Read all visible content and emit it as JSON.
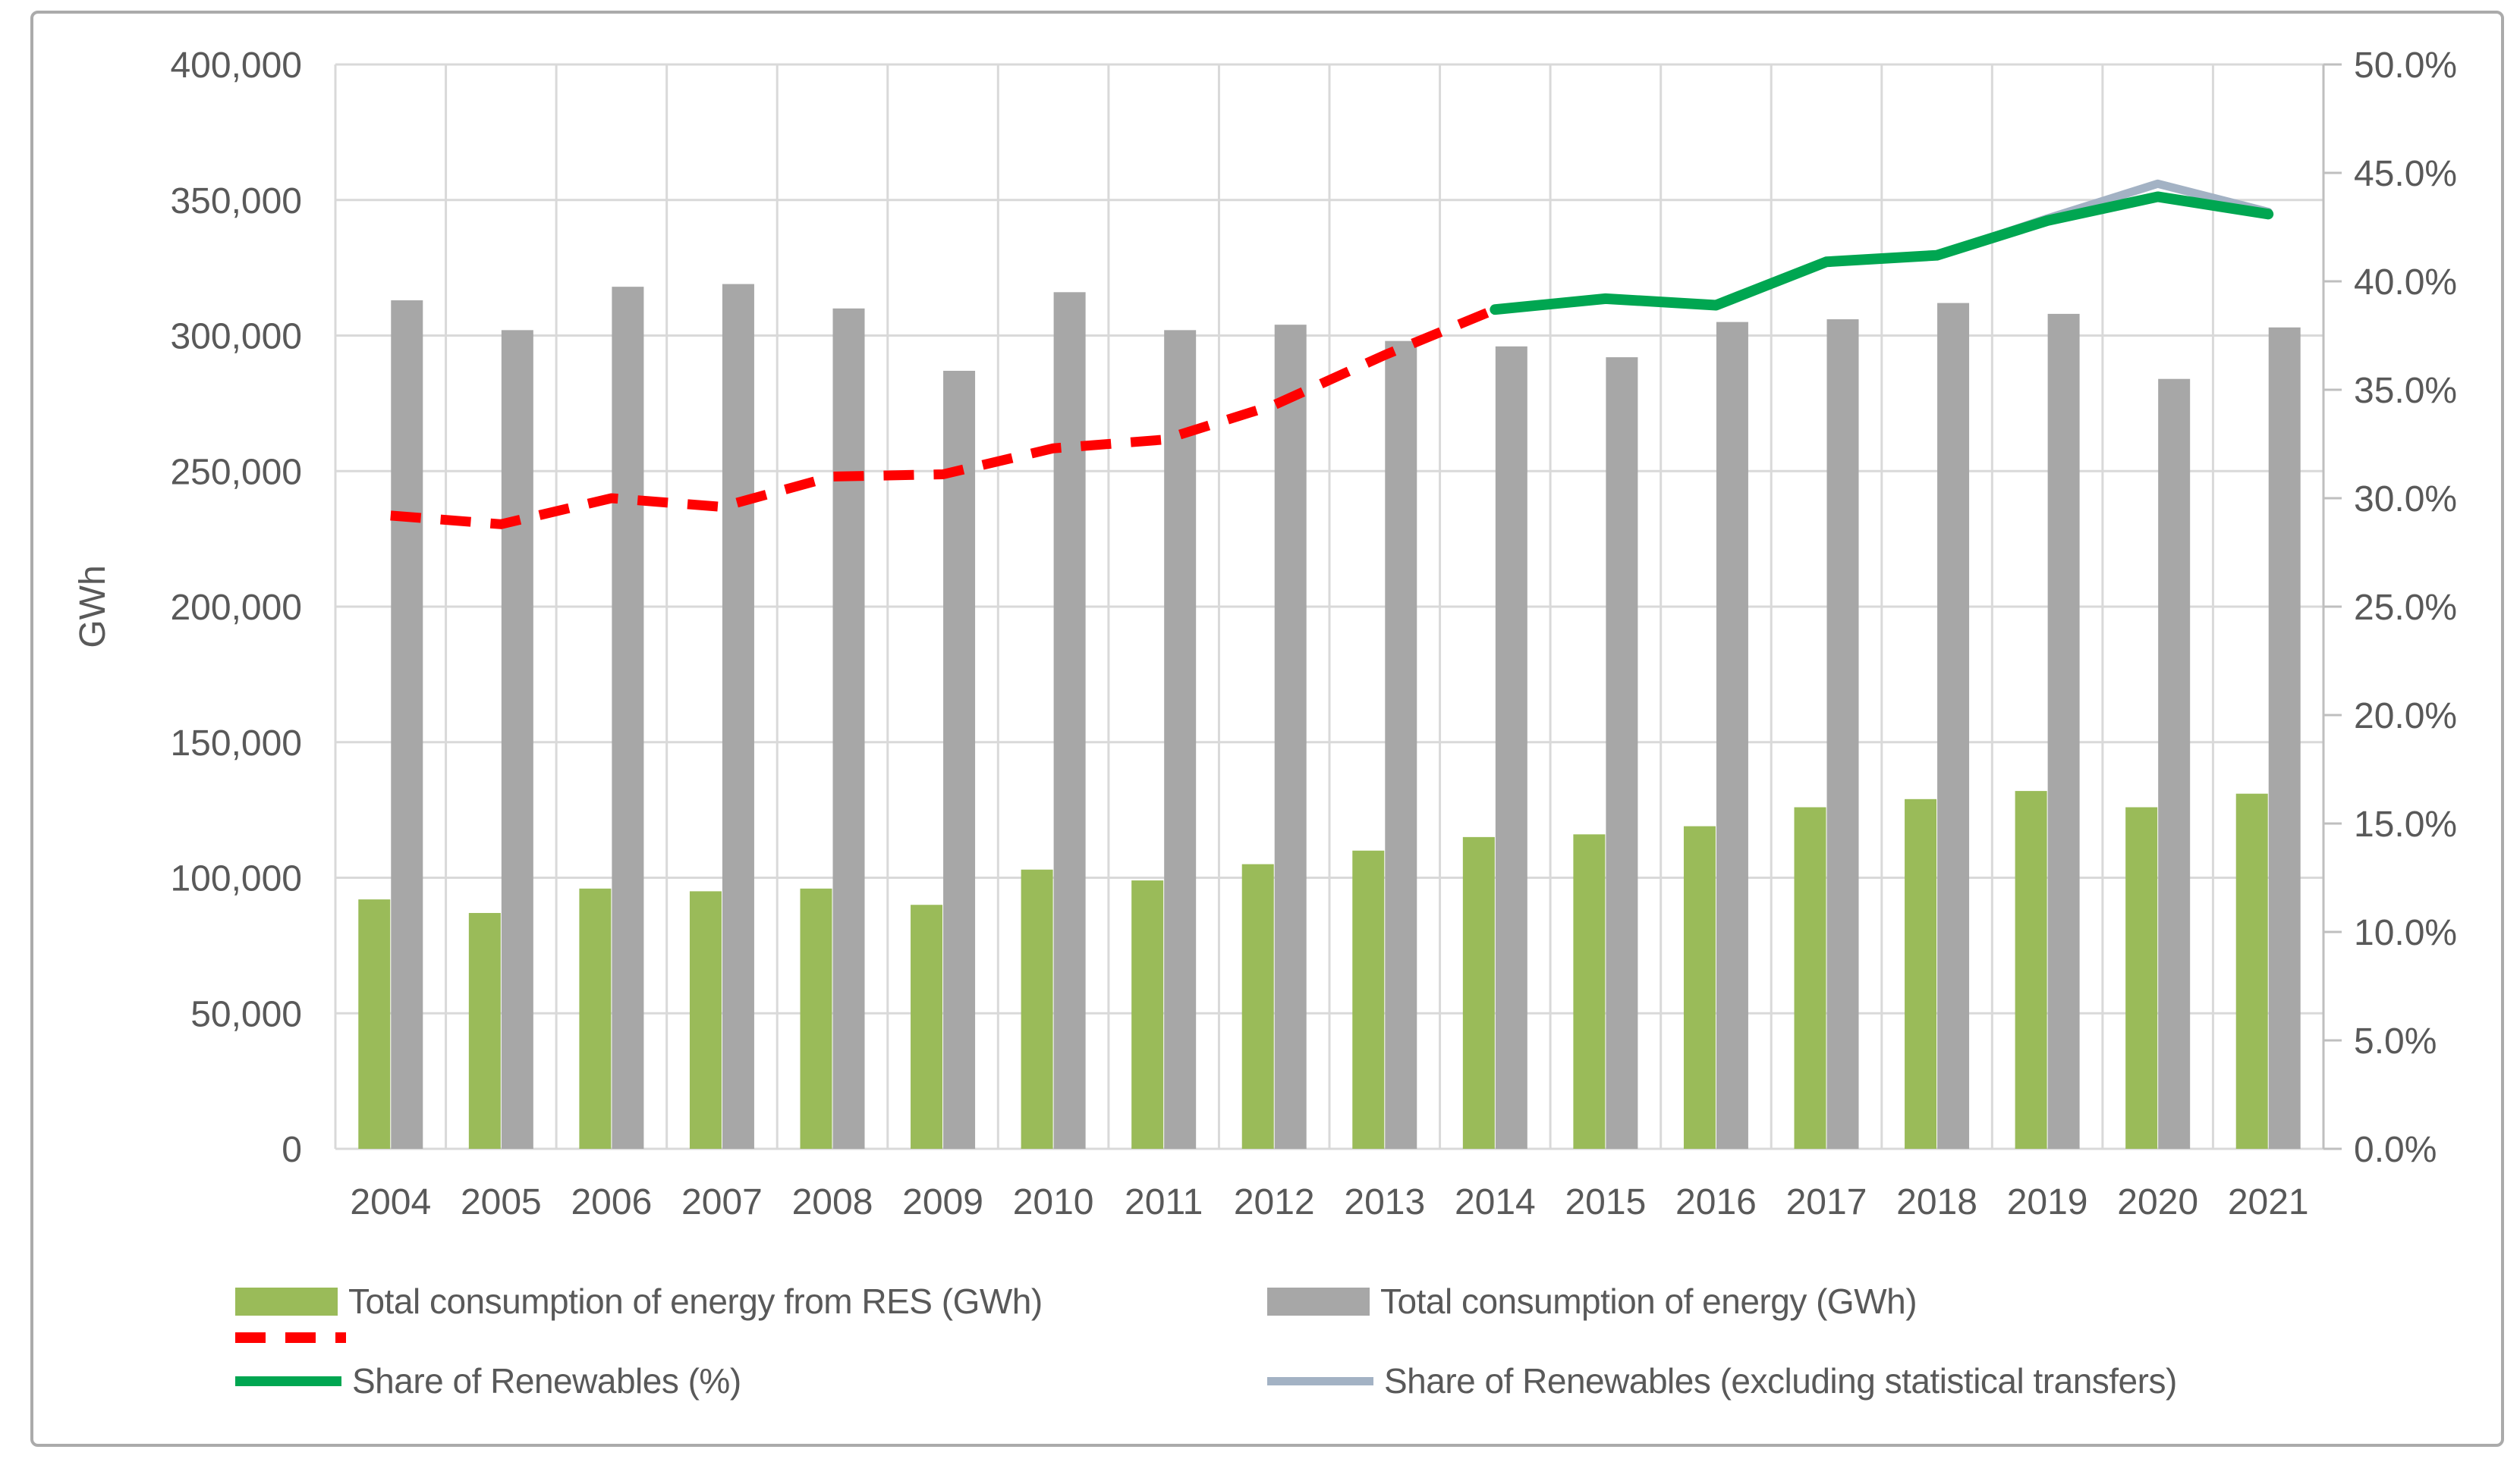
{
  "chart_data": {
    "type": "combo-bar-line",
    "categories": [
      "2004",
      "2005",
      "2006",
      "2007",
      "2008",
      "2009",
      "2010",
      "2011",
      "2012",
      "2013",
      "2014",
      "2015",
      "2016",
      "2017",
      "2018",
      "2019",
      "2020",
      "2021"
    ],
    "left_axis": {
      "title": "GWh",
      "min": 0,
      "max": 400000,
      "step": 50000,
      "tick_labels": [
        "0",
        "50,000",
        "100,000",
        "150,000",
        "200,000",
        "250,000",
        "300,000",
        "350,000",
        "400,000"
      ]
    },
    "right_axis": {
      "min": 0,
      "max": 50,
      "step": 5,
      "tick_labels": [
        "0.0%",
        "5.0%",
        "10.0%",
        "15.0%",
        "20.0%",
        "25.0%",
        "30.0%",
        "35.0%",
        "40.0%",
        "45.0%",
        "50.0%"
      ]
    },
    "grid": true,
    "legend_position": "bottom",
    "series": [
      {
        "id": "res_consumption",
        "name": "Total consumption of energy from RES (GWh)",
        "type": "bar",
        "axis": "left",
        "color": "#9abb59",
        "values": [
          92000,
          87000,
          96000,
          95000,
          96000,
          90000,
          103000,
          99000,
          105000,
          110000,
          115000,
          116000,
          119000,
          126000,
          129000,
          132000,
          126000,
          131000
        ]
      },
      {
        "id": "total_consumption",
        "name": "Total consumption of energy (GWh)",
        "type": "bar",
        "axis": "left",
        "color": "#a7a7a7",
        "values": [
          313000,
          302000,
          318000,
          319000,
          310000,
          287000,
          316000,
          302000,
          304000,
          298000,
          296000,
          292000,
          305000,
          306000,
          312000,
          308000,
          284000,
          303000
        ]
      },
      {
        "id": "share_dashed_pre2014",
        "name": "",
        "type": "line",
        "dashed": true,
        "axis": "right",
        "color": "#ff0000",
        "values": [
          29.2,
          28.8,
          30.0,
          29.6,
          31.0,
          31.1,
          32.3,
          32.7,
          34.3,
          36.6,
          38.7,
          null,
          null,
          null,
          null,
          null,
          null,
          null
        ]
      },
      {
        "id": "share_excl_transfers",
        "name": "Share of Renewables (excluding statistical transfers)",
        "type": "line",
        "dashed": false,
        "axis": "right",
        "color": "#a3b2c4",
        "values": [
          null,
          null,
          null,
          null,
          null,
          null,
          null,
          null,
          null,
          null,
          38.7,
          39.2,
          38.9,
          40.9,
          41.2,
          42.9,
          44.5,
          43.2
        ]
      },
      {
        "id": "share_renewables",
        "name": "Share of Renewables (%)",
        "type": "line",
        "dashed": false,
        "axis": "right",
        "color": "#00a651",
        "values": [
          null,
          null,
          null,
          null,
          null,
          null,
          null,
          null,
          null,
          null,
          38.7,
          39.2,
          38.9,
          40.9,
          41.2,
          42.8,
          43.9,
          43.1
        ]
      }
    ]
  },
  "legend": {
    "items": [
      {
        "series_id": "res_consumption",
        "label": "Total consumption of energy from RES (GWh)"
      },
      {
        "series_id": "total_consumption",
        "label": "Total consumption of energy (GWh)"
      },
      {
        "series_id": "share_dashed_pre2014",
        "label": ""
      },
      {
        "series_id": "share_renewables",
        "label": "Share of Renewables (%)"
      },
      {
        "series_id": "share_excl_transfers",
        "label": "Share of Renewables (excluding statistical transfers)"
      }
    ]
  },
  "colors": {
    "grid": "#d9d9d9",
    "axis_line": "#bfbfbf",
    "text": "#595959",
    "frame": "#ababab",
    "background": "#ffffff"
  }
}
